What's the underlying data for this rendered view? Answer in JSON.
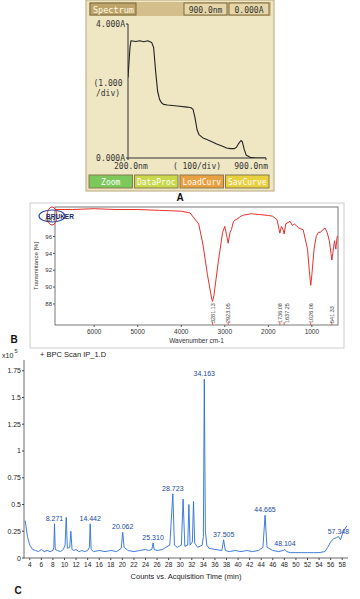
{
  "chart_data": [
    {
      "type": "line",
      "panel_label": "A",
      "title": "Spectrum",
      "header_values": [
        "900.0nm",
        "0.000A"
      ],
      "x": [
        200,
        210,
        215,
        240,
        260,
        280,
        300,
        320,
        330,
        340,
        350,
        360,
        370,
        380,
        400,
        450,
        500,
        520,
        530,
        540,
        550,
        560,
        580,
        600,
        620,
        650,
        680,
        700,
        720,
        740,
        750,
        760,
        770,
        775,
        780,
        790,
        800,
        820,
        850,
        880,
        900
      ],
      "values": [
        2.4,
        3.3,
        3.5,
        3.48,
        3.5,
        3.47,
        3.5,
        3.45,
        3.3,
        2.6,
        2.0,
        1.75,
        1.65,
        1.6,
        1.58,
        1.55,
        1.52,
        1.5,
        1.45,
        1.2,
        0.85,
        0.7,
        0.6,
        0.55,
        0.5,
        0.42,
        0.35,
        0.3,
        0.28,
        0.28,
        0.32,
        0.42,
        0.5,
        0.52,
        0.48,
        0.25,
        0.08,
        0.02,
        0,
        0,
        0
      ],
      "color": "#222222",
      "xlim": [
        200,
        900
      ],
      "ylim": [
        0,
        4
      ],
      "xticks": [
        {
          "value": 200,
          "label": "200.0nm"
        },
        {
          "value": 900,
          "label": "900.0nm"
        }
      ],
      "yticks": [
        {
          "value": 0,
          "label": "0.000A"
        },
        {
          "value": 4,
          "label": "4.000A"
        }
      ],
      "y_scale_label": [
        "(1.000",
        "/div)"
      ],
      "x_scale_label": "( 100/div)",
      "buttons": [
        "Zoom",
        "DataProc",
        "LoadCurv",
        "SavCurve"
      ]
    },
    {
      "type": "line",
      "panel_label": "B",
      "logo": "BRUKER",
      "x_label": "Wavenumber cm-1",
      "y_label": "Transmittance [%]",
      "x": [
        6900,
        6500,
        6000,
        5500,
        5000,
        4500,
        4000,
        3800,
        3600,
        3500,
        3400,
        3300,
        3281,
        3250,
        3150,
        3050,
        3000,
        2960,
        2923,
        2880,
        2850,
        2800,
        2600,
        2400,
        2200,
        2000,
        1900,
        1800,
        1760,
        1736,
        1700,
        1660,
        1637,
        1600,
        1500,
        1450,
        1400,
        1300,
        1200,
        1100,
        1060,
        1026,
        1000,
        950,
        900,
        850,
        800,
        750,
        700,
        650,
        600,
        560,
        541,
        520,
        480,
        450,
        420,
        400
      ],
      "values": [
        99.2,
        99.2,
        99.3,
        99.2,
        99.2,
        99.1,
        99.0,
        98.8,
        97.5,
        95,
        91.5,
        88.6,
        88.3,
        89,
        93,
        96.5,
        97.2,
        96.2,
        95.2,
        96.5,
        96.8,
        97.8,
        98.5,
        98.7,
        98.6,
        98.5,
        98.4,
        98,
        97,
        96.4,
        97.2,
        96.8,
        96.3,
        97.5,
        97.8,
        97.3,
        97.5,
        97.0,
        96.8,
        94.5,
        92,
        90.2,
        91.5,
        94.5,
        96,
        96.5,
        96.5,
        96.8,
        97,
        96.5,
        95.5,
        94,
        93.2,
        94,
        95.5,
        94.5,
        96,
        96
      ],
      "color": "#e8302a",
      "xlim": [
        6900,
        400
      ],
      "ylim": [
        85.5,
        99.5
      ],
      "xticks": [
        6000,
        5000,
        4000,
        3000,
        2000,
        1000
      ],
      "yticks": [
        88,
        90,
        92,
        94,
        96,
        98
      ],
      "peaks": [
        3281.13,
        2923.05,
        1736.08,
        1637.25,
        1026.06,
        541.33
      ]
    },
    {
      "type": "line",
      "panel_label": "C",
      "title": "+ BPC Scan IP_1.D",
      "y_multiplier": "x10",
      "y_exponent": "5",
      "x_label": "Counts vs. Acquisition Time (min)",
      "x": [
        3.2,
        3.6,
        4.0,
        4.5,
        5,
        5.5,
        6,
        6.5,
        7,
        7.5,
        8.0,
        8.15,
        8.271,
        8.4,
        8.8,
        9.3,
        9.8,
        10.1,
        10.3,
        10.5,
        10.9,
        11.1,
        11.3,
        11.6,
        12,
        12.5,
        13,
        13.5,
        14.0,
        14.3,
        14.442,
        14.6,
        15,
        16,
        17,
        18,
        19,
        19.8,
        20.062,
        20.3,
        21,
        22,
        23,
        24,
        24.5,
        25.1,
        25.31,
        25.5,
        26,
        27,
        27.5,
        28.2,
        28.723,
        29.0,
        29.5,
        30.2,
        30.5,
        30.8,
        31.3,
        31.5,
        31.7,
        32.1,
        32.3,
        32.5,
        33,
        33.8,
        34.0,
        34.163,
        34.35,
        34.6,
        35,
        36,
        37.2,
        37.505,
        37.8,
        38.5,
        39.5,
        40.5,
        41.5,
        42.5,
        43.5,
        44.3,
        44.665,
        45.0,
        46,
        47,
        47.8,
        48.104,
        48.4,
        49,
        50,
        51,
        52,
        53,
        54,
        55,
        55.5,
        56,
        56.5,
        57,
        57.348,
        57.7,
        58.2,
        58.8
      ],
      "values": [
        0.35,
        0.2,
        0.12,
        0.08,
        0.07,
        0.06,
        0.08,
        0.06,
        0.07,
        0.06,
        0.07,
        0.1,
        0.32,
        0.08,
        0.07,
        0.06,
        0.08,
        0.12,
        0.38,
        0.09,
        0.1,
        0.25,
        0.08,
        0.07,
        0.08,
        0.06,
        0.07,
        0.06,
        0.07,
        0.1,
        0.32,
        0.08,
        0.06,
        0.07,
        0.06,
        0.07,
        0.06,
        0.09,
        0.24,
        0.1,
        0.07,
        0.06,
        0.07,
        0.08,
        0.07,
        0.08,
        0.14,
        0.08,
        0.07,
        0.08,
        0.1,
        0.12,
        0.6,
        0.12,
        0.1,
        0.12,
        0.55,
        0.11,
        0.12,
        0.5,
        0.12,
        0.15,
        0.53,
        0.14,
        0.1,
        0.12,
        0.2,
        1.67,
        0.25,
        0.12,
        0.09,
        0.08,
        0.07,
        0.17,
        0.07,
        0.06,
        0.07,
        0.06,
        0.07,
        0.06,
        0.07,
        0.1,
        0.4,
        0.1,
        0.07,
        0.06,
        0.07,
        0.08,
        0.06,
        0.05,
        0.05,
        0.05,
        0.05,
        0.05,
        0.05,
        0.06,
        0.1,
        0.15,
        0.18,
        0.19,
        0.2,
        0.17,
        0.25,
        0.3
      ],
      "color": "#2a6fd6",
      "xlim": [
        3,
        59
      ],
      "ylim": [
        0,
        1.85
      ],
      "xticks": [
        4,
        6,
        8,
        10,
        12,
        14,
        16,
        18,
        20,
        22,
        24,
        26,
        28,
        30,
        32,
        34,
        36,
        38,
        40,
        42,
        44,
        46,
        48,
        50,
        52,
        54,
        56,
        58
      ],
      "yticks": [
        0,
        0.25,
        0.5,
        0.75,
        1,
        1.25,
        1.5,
        1.75
      ],
      "peak_x": [
        8.271,
        14.442,
        20.062,
        25.31,
        28.723,
        34.163,
        37.505,
        44.665,
        48.104,
        57.348
      ],
      "peak_labels": [
        "8.271",
        "14.442",
        "20.062",
        "25.310",
        "28.723",
        "34.163",
        "37.505",
        "44.665",
        "48.104",
        "57.348"
      ]
    }
  ]
}
